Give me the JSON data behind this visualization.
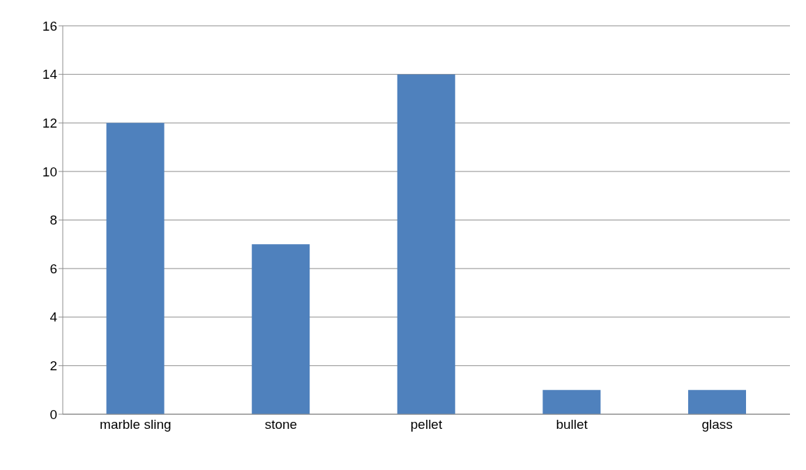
{
  "chart_data": {
    "type": "bar",
    "categories": [
      "marble sling",
      "stone",
      "pellet",
      "bullet",
      "glass"
    ],
    "values": [
      12,
      7,
      14,
      1,
      1
    ],
    "color": "#4f81bd",
    "ylim": [
      0,
      16
    ],
    "yticks": [
      0,
      2,
      4,
      6,
      8,
      10,
      12,
      14,
      16
    ],
    "grid": "y",
    "legend": false
  }
}
